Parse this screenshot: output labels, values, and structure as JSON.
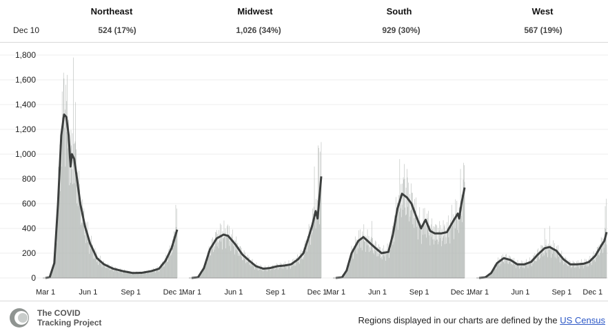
{
  "header": {
    "date_label": "Dec 10",
    "regions": [
      {
        "name": "Northeast",
        "value": "524 (17%)"
      },
      {
        "name": "Midwest",
        "value": "1,026 (34%)"
      },
      {
        "name": "South",
        "value": "929 (30%)"
      },
      {
        "name": "West",
        "value": "567 (19%)"
      }
    ]
  },
  "footer": {
    "logo_line1": "The COVID",
    "logo_line2": "Tracking Project",
    "note": "Regions displayed in our charts are defined by the",
    "link": "US Census"
  },
  "colors": {
    "bar": "#b7bcb9",
    "line": "#3c3f3e",
    "grid": "#ececec"
  },
  "chart_data": {
    "type": "bar",
    "title": "",
    "xlabel": "",
    "ylabel": "",
    "ylim": [
      0,
      1800
    ],
    "y_ticks": [
      "0",
      "200",
      "400",
      "600",
      "800",
      "1,000",
      "1,200",
      "1,400",
      "1,600",
      "1,800"
    ],
    "y_tick_values": [
      0,
      200,
      400,
      600,
      800,
      1000,
      1200,
      1400,
      1600,
      1800
    ],
    "x_ticks": [
      "Mar 1",
      "Jun 1",
      "Sep 1",
      "Dec 1"
    ],
    "x_tick_dates": [
      "2020-03-01",
      "2020-06-01",
      "2020-09-01",
      "2020-12-01"
    ],
    "date_range": [
      "2020-03-01",
      "2020-12-10"
    ],
    "grid": true,
    "panels": [
      {
        "name": "Northeast",
        "line_anchors": [
          [
            "2020-03-01",
            0
          ],
          [
            "2020-03-10",
            5
          ],
          [
            "2020-03-20",
            120
          ],
          [
            "2020-03-28",
            600
          ],
          [
            "2020-04-04",
            1150
          ],
          [
            "2020-04-10",
            1320
          ],
          [
            "2020-04-15",
            1300
          ],
          [
            "2020-04-20",
            1150
          ],
          [
            "2020-04-24",
            900
          ],
          [
            "2020-04-27",
            1000
          ],
          [
            "2020-05-02",
            960
          ],
          [
            "2020-05-08",
            800
          ],
          [
            "2020-05-15",
            600
          ],
          [
            "2020-05-25",
            420
          ],
          [
            "2020-06-05",
            280
          ],
          [
            "2020-06-20",
            160
          ],
          [
            "2020-07-05",
            110
          ],
          [
            "2020-07-25",
            75
          ],
          [
            "2020-08-15",
            55
          ],
          [
            "2020-09-05",
            40
          ],
          [
            "2020-09-25",
            42
          ],
          [
            "2020-10-15",
            55
          ],
          [
            "2020-11-01",
            75
          ],
          [
            "2020-11-15",
            140
          ],
          [
            "2020-11-28",
            240
          ],
          [
            "2020-12-10",
            390
          ]
        ],
        "spikes": [
          [
            "2020-04-10",
            1610
          ],
          [
            "2020-04-14",
            1560
          ],
          [
            "2020-04-30",
            1780
          ],
          [
            "2020-05-05",
            1420
          ],
          [
            "2020-12-07",
            590
          ],
          [
            "2020-12-09",
            560
          ]
        ]
      },
      {
        "name": "Midwest",
        "line_anchors": [
          [
            "2020-03-01",
            0
          ],
          [
            "2020-03-15",
            5
          ],
          [
            "2020-03-28",
            80
          ],
          [
            "2020-04-10",
            230
          ],
          [
            "2020-04-25",
            320
          ],
          [
            "2020-05-10",
            350
          ],
          [
            "2020-05-20",
            340
          ],
          [
            "2020-06-05",
            270
          ],
          [
            "2020-06-20",
            190
          ],
          [
            "2020-07-05",
            140
          ],
          [
            "2020-07-20",
            95
          ],
          [
            "2020-08-05",
            75
          ],
          [
            "2020-08-20",
            80
          ],
          [
            "2020-09-05",
            95
          ],
          [
            "2020-09-20",
            100
          ],
          [
            "2020-10-05",
            110
          ],
          [
            "2020-10-20",
            150
          ],
          [
            "2020-11-01",
            200
          ],
          [
            "2020-11-10",
            300
          ],
          [
            "2020-11-20",
            420
          ],
          [
            "2020-11-28",
            540
          ],
          [
            "2020-12-02",
            480
          ],
          [
            "2020-12-06",
            650
          ],
          [
            "2020-12-10",
            820
          ]
        ],
        "spikes": [
          [
            "2020-05-05",
            430
          ],
          [
            "2020-05-18",
            420
          ],
          [
            "2020-12-03",
            1070
          ],
          [
            "2020-12-05",
            1050
          ],
          [
            "2020-12-08",
            1020
          ],
          [
            "2020-11-25",
            900
          ]
        ]
      },
      {
        "name": "South",
        "line_anchors": [
          [
            "2020-03-01",
            0
          ],
          [
            "2020-03-15",
            5
          ],
          [
            "2020-03-25",
            60
          ],
          [
            "2020-04-05",
            200
          ],
          [
            "2020-04-20",
            300
          ],
          [
            "2020-05-01",
            330
          ],
          [
            "2020-05-10",
            300
          ],
          [
            "2020-05-25",
            250
          ],
          [
            "2020-06-10",
            200
          ],
          [
            "2020-06-25",
            210
          ],
          [
            "2020-07-05",
            350
          ],
          [
            "2020-07-15",
            560
          ],
          [
            "2020-07-25",
            680
          ],
          [
            "2020-08-05",
            650
          ],
          [
            "2020-08-15",
            600
          ],
          [
            "2020-08-25",
            500
          ],
          [
            "2020-09-05",
            400
          ],
          [
            "2020-09-15",
            470
          ],
          [
            "2020-09-25",
            380
          ],
          [
            "2020-10-05",
            360
          ],
          [
            "2020-10-20",
            360
          ],
          [
            "2020-11-01",
            370
          ],
          [
            "2020-11-15",
            460
          ],
          [
            "2020-11-25",
            520
          ],
          [
            "2020-11-28",
            480
          ],
          [
            "2020-12-03",
            600
          ],
          [
            "2020-12-10",
            730
          ]
        ],
        "spikes": [
          [
            "2020-05-20",
            460
          ],
          [
            "2020-07-20",
            960
          ],
          [
            "2020-07-30",
            920
          ],
          [
            "2020-08-05",
            880
          ],
          [
            "2020-12-01",
            880
          ],
          [
            "2020-12-08",
            930
          ]
        ]
      },
      {
        "name": "West",
        "line_anchors": [
          [
            "2020-03-01",
            0
          ],
          [
            "2020-03-15",
            5
          ],
          [
            "2020-03-28",
            40
          ],
          [
            "2020-04-10",
            120
          ],
          [
            "2020-04-25",
            160
          ],
          [
            "2020-05-10",
            145
          ],
          [
            "2020-05-25",
            110
          ],
          [
            "2020-06-10",
            110
          ],
          [
            "2020-06-25",
            130
          ],
          [
            "2020-07-10",
            190
          ],
          [
            "2020-07-25",
            240
          ],
          [
            "2020-08-05",
            250
          ],
          [
            "2020-08-20",
            220
          ],
          [
            "2020-09-05",
            150
          ],
          [
            "2020-09-20",
            110
          ],
          [
            "2020-10-05",
            110
          ],
          [
            "2020-10-20",
            115
          ],
          [
            "2020-11-01",
            130
          ],
          [
            "2020-11-15",
            180
          ],
          [
            "2020-11-28",
            260
          ],
          [
            "2020-12-05",
            300
          ],
          [
            "2020-12-10",
            370
          ]
        ],
        "spikes": [
          [
            "2020-07-25",
            400
          ],
          [
            "2020-08-05",
            420
          ],
          [
            "2020-12-09",
            640
          ],
          [
            "2020-12-07",
            580
          ]
        ]
      }
    ]
  }
}
